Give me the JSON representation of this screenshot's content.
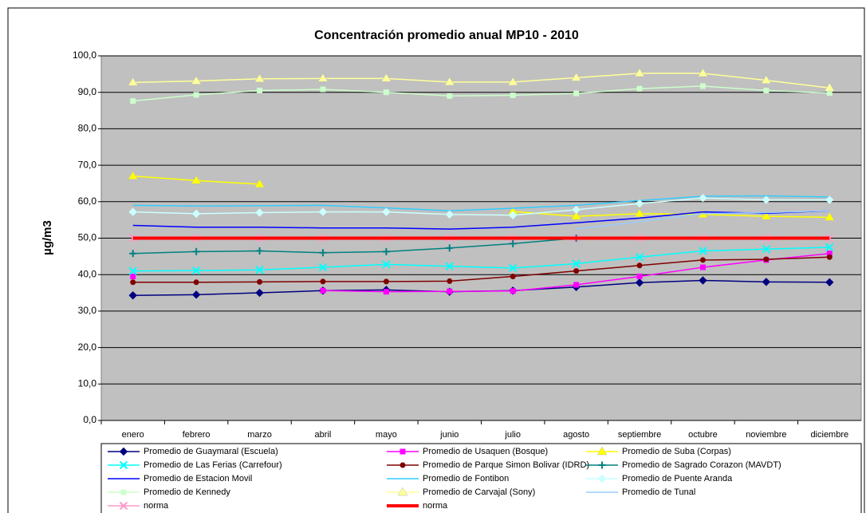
{
  "chart_data": {
    "type": "line",
    "title": "Concentración promedio anual MP10 - 2010",
    "y_label": "µg/m3",
    "categories": [
      "enero",
      "febrero",
      "marzo",
      "abril",
      "mayo",
      "junio",
      "julio",
      "agosto",
      "septiembre",
      "octubre",
      "noviembre",
      "diciembre"
    ],
    "ylim": [
      0,
      100
    ],
    "yticks": [
      {
        "value": 0,
        "label": "0,0"
      },
      {
        "value": 10,
        "label": "10,0"
      },
      {
        "value": 20,
        "label": "20,0"
      },
      {
        "value": 30,
        "label": "30,0"
      },
      {
        "value": 40,
        "label": "40,0"
      },
      {
        "value": 50,
        "label": "50,0"
      },
      {
        "value": 60,
        "label": "60,0"
      },
      {
        "value": 70,
        "label": "70,0"
      },
      {
        "value": 80,
        "label": "80,0"
      },
      {
        "value": 90,
        "label": "90,0"
      },
      {
        "value": 100,
        "label": "100,0"
      }
    ],
    "grid": true,
    "legend": "bottom",
    "series": [
      {
        "name": "Promedio de Guaymaral (Escuela)",
        "color": "#000080",
        "marker": "diamond",
        "values": [
          34.3,
          34.5,
          35,
          35.6,
          35.8,
          35.3,
          35.6,
          36.6,
          37.8,
          38.4,
          38,
          37.9
        ]
      },
      {
        "name": "Promedio de Usaquen  (Bosque)",
        "color": "#FF00FF",
        "marker": "square",
        "values": [
          39.5,
          null,
          null,
          35.6,
          35.3,
          35.4,
          35.5,
          37.2,
          39.5,
          42,
          44,
          45.8
        ]
      },
      {
        "name": "Promedio de Suba (Corpas)",
        "color": "#FFFF00",
        "marker": "triangle",
        "values": [
          67,
          65.8,
          64.8,
          null,
          null,
          null,
          57.3,
          56,
          56.7,
          56.5,
          56,
          55.7
        ]
      },
      {
        "name": "Promedio de Las Ferias (Carrefour)",
        "color": "#00FFFF",
        "marker": "x",
        "values": [
          41,
          41.1,
          41.3,
          42,
          42.8,
          42.3,
          41.8,
          43,
          44.8,
          46.5,
          47,
          47.5
        ]
      },
      {
        "name": "Promedio de Parque Simon Bolivar (IDRD)",
        "color": "#800000",
        "marker": "circle",
        "values": [
          37.9,
          37.9,
          38,
          38.1,
          38.1,
          38.2,
          39.5,
          41,
          42.5,
          44,
          44.2,
          44.8
        ]
      },
      {
        "name": "Promedio de Sagrado Corazon (MAVDT)",
        "color": "#008080",
        "marker": "plus",
        "values": [
          45.8,
          46.3,
          46.5,
          46,
          46.3,
          47.3,
          48.5,
          50,
          null,
          null,
          null,
          null
        ]
      },
      {
        "name": "Promedio de Estacion Movil",
        "color": "#0000FF",
        "marker": "none",
        "values": [
          53.5,
          53,
          53,
          52.8,
          52.8,
          52.5,
          53,
          54.2,
          55.5,
          57.2,
          56.8,
          57.5
        ]
      },
      {
        "name": "Promedio de Fontibon",
        "color": "#33CCFF",
        "marker": "none",
        "values": [
          59,
          58.8,
          58.9,
          59,
          58.3,
          57.5,
          58.2,
          59,
          60.3,
          61.5,
          61.6,
          61.3
        ]
      },
      {
        "name": "Promedio de Puente Aranda",
        "color": "#CCFFFF",
        "marker": "diamond",
        "values": [
          57.2,
          56.7,
          57,
          57.2,
          57.2,
          56.5,
          56.3,
          57.8,
          59.5,
          61,
          60.5,
          60.5
        ]
      },
      {
        "name": "Promedio de Kennedy",
        "color": "#CCFFCC",
        "marker": "square",
        "values": [
          87.6,
          89.3,
          90.5,
          90.8,
          90,
          89,
          89.2,
          89.7,
          91,
          91.7,
          90.5,
          89.8
        ]
      },
      {
        "name": "Promedio de Carvajal  (Sony)",
        "color": "#FFFF99",
        "marker": "triangle",
        "values": [
          92.7,
          93.1,
          93.7,
          93.8,
          93.8,
          92.8,
          92.8,
          94,
          95.2,
          95.2,
          93.3,
          91.2
        ]
      },
      {
        "name": "Promedio de Tunal",
        "color": "#99CCFF",
        "marker": "none",
        "values": [
          null,
          null,
          null,
          null,
          null,
          null,
          null,
          52.5,
          54.5,
          56.7,
          57,
          57.5
        ]
      },
      {
        "name": "norma",
        "color": "#FF99CC",
        "marker": "x",
        "values": [
          50,
          50,
          50,
          50,
          50,
          50,
          50,
          50,
          50,
          50,
          50,
          50
        ]
      },
      {
        "name": "norma",
        "color": "#FF0000",
        "marker": "none",
        "width": 4,
        "values": [
          50,
          50,
          50,
          50,
          50,
          50,
          50,
          50,
          50,
          50,
          50,
          50
        ]
      }
    ]
  }
}
